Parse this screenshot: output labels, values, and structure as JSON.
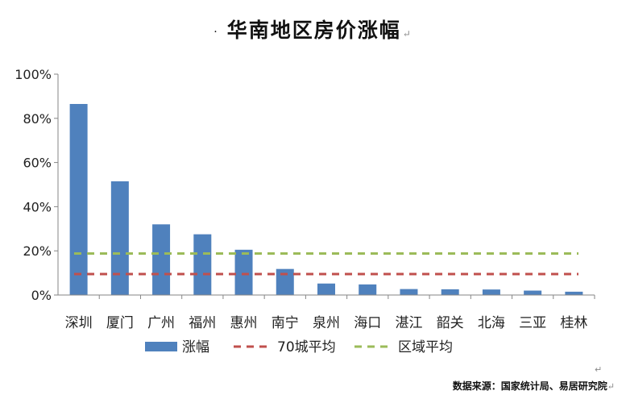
{
  "chart_data": {
    "type": "bar",
    "title": "华南地区房价涨幅",
    "categories": [
      "深圳",
      "厦门",
      "广州",
      "福州",
      "惠州",
      "南宁",
      "泉州",
      "海口",
      "湛江",
      "韶关",
      "北海",
      "三亚",
      "桂林"
    ],
    "series": [
      {
        "name": "涨幅",
        "values": [
          86.5,
          51.5,
          32,
          27.5,
          20.5,
          11.8,
          5.2,
          4.8,
          2.7,
          2.6,
          2.5,
          2.0,
          1.5
        ],
        "color": "#4F81BD"
      }
    ],
    "reference_lines": [
      {
        "name": "70城平均",
        "value": 9.5,
        "color": "#C0504D",
        "style": "dashed"
      },
      {
        "name": "区域平均",
        "value": 18.8,
        "color": "#9BBB59",
        "style": "dashed"
      }
    ],
    "ylim": [
      0,
      100
    ],
    "yticks": [
      "0%",
      "20%",
      "40%",
      "60%",
      "80%",
      "100%"
    ],
    "ytick_values": [
      0,
      20,
      40,
      60,
      80,
      100
    ],
    "legend_position": "bottom",
    "grid": false
  },
  "title_prefix": "·",
  "paragraph_mark": "↵",
  "source": "数据来源：国家统计局、易居研究院"
}
